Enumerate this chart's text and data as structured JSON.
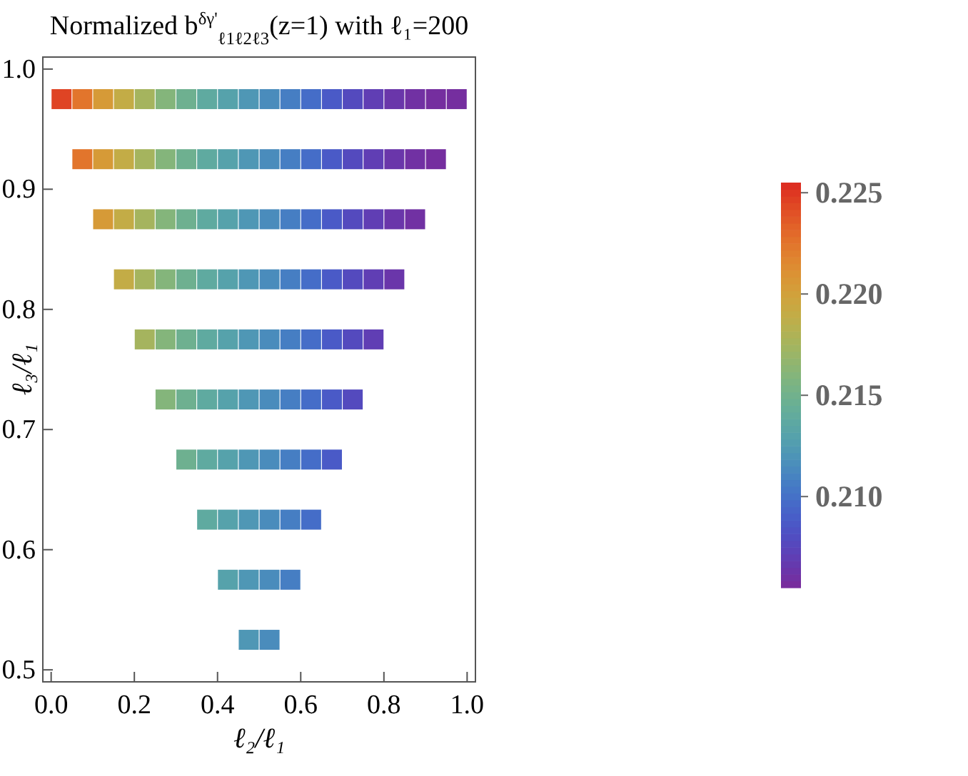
{
  "chart_data": {
    "type": "scatter",
    "title": "Normalized b$^{δγ'}$$_{ℓ1ℓ2ℓ3}$(z=1) with ℓ₁=200",
    "xlabel": "ℓ₂/ℓ₁",
    "ylabel": "ℓ₃/ℓ₁",
    "marker": "square",
    "xlim": [
      -0.02,
      1.02
    ],
    "ylim": [
      0.49,
      1.01
    ],
    "xticks": [
      {
        "value": 0,
        "label": "0.0"
      },
      {
        "value": 0.2,
        "label": "0.2"
      },
      {
        "value": 0.4,
        "label": "0.4"
      },
      {
        "value": 0.6,
        "label": "0.6"
      },
      {
        "value": 0.8,
        "label": "0.8"
      },
      {
        "value": 1,
        "label": "1.0"
      }
    ],
    "yticks": [
      {
        "value": 0.5,
        "label": "0.5"
      },
      {
        "value": 0.6,
        "label": "0.6"
      },
      {
        "value": 0.7,
        "label": "0.7"
      },
      {
        "value": 0.8,
        "label": "0.8"
      },
      {
        "value": 0.9,
        "label": "0.9"
      },
      {
        "value": 1,
        "label": "1.0"
      }
    ],
    "clim": [
      0.2055,
      0.2255
    ],
    "cticks": [
      {
        "value": 0.21,
        "label": "0.210"
      },
      {
        "value": 0.215,
        "label": "0.215"
      },
      {
        "value": 0.22,
        "label": "0.220"
      },
      {
        "value": 0.225,
        "label": "0.225"
      }
    ],
    "x": [
      0.025,
      0.075,
      0.125,
      0.175,
      0.225,
      0.275,
      0.325,
      0.375,
      0.425,
      0.475,
      0.525,
      0.575,
      0.625,
      0.675,
      0.725,
      0.775,
      0.825,
      0.875,
      0.925,
      0.975,
      0.075,
      0.125,
      0.175,
      0.225,
      0.275,
      0.325,
      0.375,
      0.425,
      0.475,
      0.525,
      0.575,
      0.625,
      0.675,
      0.725,
      0.775,
      0.825,
      0.875,
      0.925,
      0.125,
      0.175,
      0.225,
      0.275,
      0.325,
      0.375,
      0.425,
      0.475,
      0.525,
      0.575,
      0.625,
      0.675,
      0.725,
      0.775,
      0.825,
      0.875,
      0.175,
      0.225,
      0.275,
      0.325,
      0.375,
      0.425,
      0.475,
      0.525,
      0.575,
      0.625,
      0.675,
      0.725,
      0.775,
      0.825,
      0.225,
      0.275,
      0.325,
      0.375,
      0.425,
      0.475,
      0.525,
      0.575,
      0.625,
      0.675,
      0.725,
      0.775,
      0.275,
      0.325,
      0.375,
      0.425,
      0.475,
      0.525,
      0.575,
      0.625,
      0.675,
      0.725,
      0.325,
      0.375,
      0.425,
      0.475,
      0.525,
      0.575,
      0.625,
      0.675,
      0.375,
      0.425,
      0.475,
      0.525,
      0.575,
      0.625,
      0.425,
      0.475,
      0.525,
      0.575,
      0.475,
      0.525
    ],
    "values": [
      0.975,
      0.975,
      0.975,
      0.975,
      0.975,
      0.975,
      0.975,
      0.975,
      0.975,
      0.975,
      0.975,
      0.975,
      0.975,
      0.975,
      0.975,
      0.975,
      0.975,
      0.975,
      0.975,
      0.975,
      0.925,
      0.925,
      0.925,
      0.925,
      0.925,
      0.925,
      0.925,
      0.925,
      0.925,
      0.925,
      0.925,
      0.925,
      0.925,
      0.925,
      0.925,
      0.925,
      0.925,
      0.925,
      0.875,
      0.875,
      0.875,
      0.875,
      0.875,
      0.875,
      0.875,
      0.875,
      0.875,
      0.875,
      0.875,
      0.875,
      0.875,
      0.875,
      0.875,
      0.875,
      0.825,
      0.825,
      0.825,
      0.825,
      0.825,
      0.825,
      0.825,
      0.825,
      0.825,
      0.825,
      0.825,
      0.825,
      0.825,
      0.825,
      0.775,
      0.775,
      0.775,
      0.775,
      0.775,
      0.775,
      0.775,
      0.775,
      0.775,
      0.775,
      0.775,
      0.775,
      0.725,
      0.725,
      0.725,
      0.725,
      0.725,
      0.725,
      0.725,
      0.725,
      0.725,
      0.725,
      0.675,
      0.675,
      0.675,
      0.675,
      0.675,
      0.675,
      0.675,
      0.675,
      0.625,
      0.625,
      0.625,
      0.625,
      0.625,
      0.625,
      0.575,
      0.575,
      0.575,
      0.575,
      0.525,
      0.525
    ],
    "cvalues": [
      0.2245,
      0.2225,
      0.2205,
      0.219,
      0.2175,
      0.216,
      0.2148,
      0.2138,
      0.213,
      0.2122,
      0.2115,
      0.2107,
      0.2098,
      0.2088,
      0.2078,
      0.207,
      0.2064,
      0.206,
      0.2058,
      0.2058,
      0.2225,
      0.2205,
      0.219,
      0.2175,
      0.216,
      0.2148,
      0.2138,
      0.213,
      0.2122,
      0.2115,
      0.2107,
      0.2098,
      0.2088,
      0.2078,
      0.207,
      0.2064,
      0.206,
      0.2058,
      0.2205,
      0.219,
      0.2175,
      0.216,
      0.2148,
      0.2138,
      0.213,
      0.2122,
      0.2115,
      0.2107,
      0.2098,
      0.2088,
      0.2078,
      0.207,
      0.2064,
      0.206,
      0.219,
      0.2175,
      0.216,
      0.2148,
      0.2138,
      0.213,
      0.2122,
      0.2115,
      0.2107,
      0.2098,
      0.2088,
      0.2078,
      0.207,
      0.2064,
      0.2175,
      0.216,
      0.2148,
      0.2138,
      0.213,
      0.2122,
      0.2115,
      0.2107,
      0.2098,
      0.2088,
      0.2078,
      0.207,
      0.216,
      0.2148,
      0.2138,
      0.213,
      0.2122,
      0.2115,
      0.2107,
      0.2098,
      0.2088,
      0.2078,
      0.2148,
      0.2138,
      0.213,
      0.2122,
      0.2115,
      0.2107,
      0.2098,
      0.2088,
      0.2138,
      0.213,
      0.2122,
      0.2115,
      0.2107,
      0.2098,
      0.213,
      0.2122,
      0.2115,
      0.2107,
      0.2122,
      0.2115
    ]
  }
}
